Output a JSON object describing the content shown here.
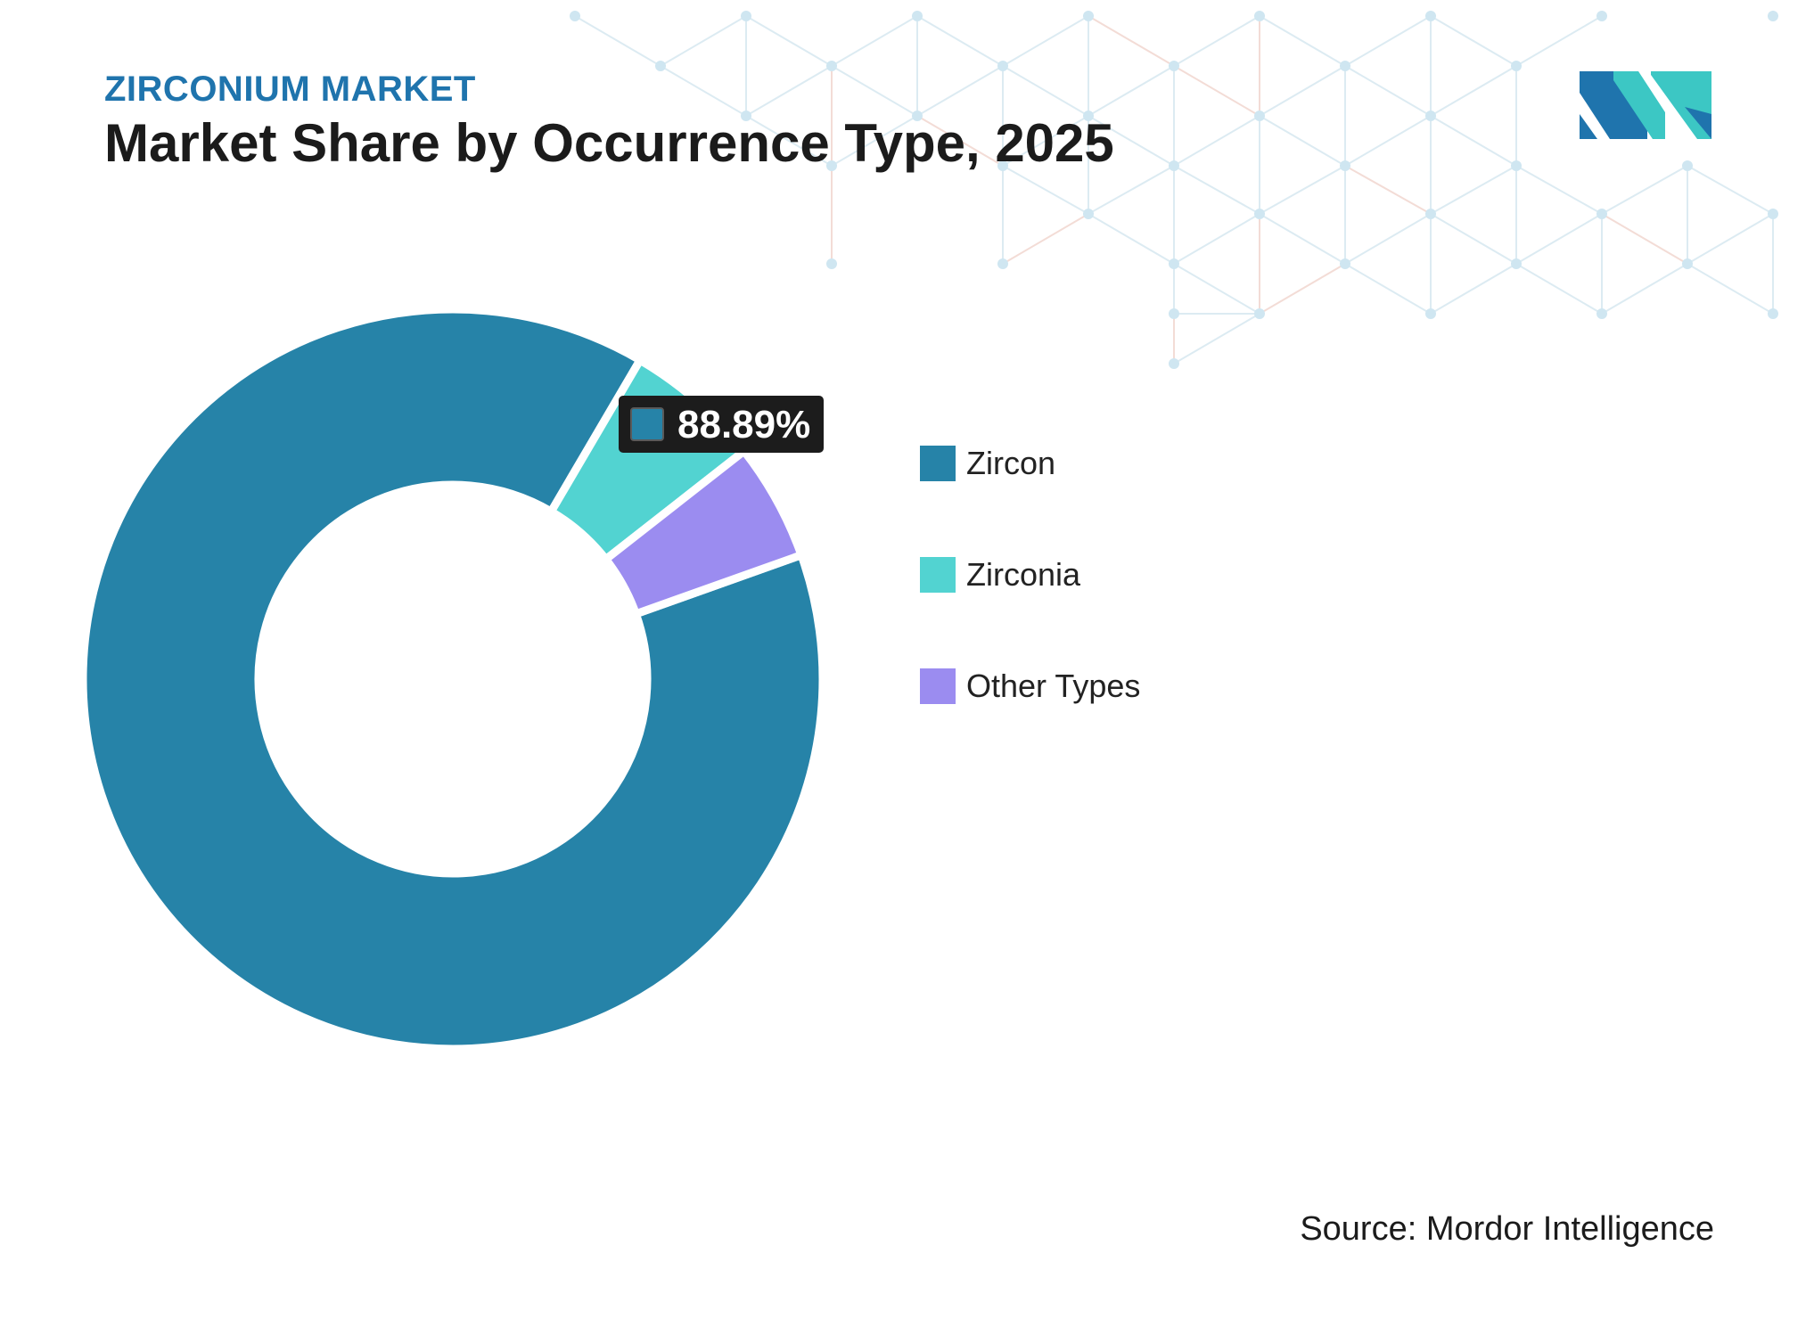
{
  "header": {
    "kicker": "ZIRCONIUM MARKET",
    "title": "Market Share by Occurrence Type, 2025"
  },
  "colors": {
    "zircon": "#2683a8",
    "zirconia": "#52d3d1",
    "other": "#9b8cf0",
    "tooltip_bg": "#1c1c1c",
    "logo_dark": "#1f74ad",
    "logo_light": "#3cc7c4"
  },
  "logo": {
    "icon": "mordor-intelligence-logo-icon"
  },
  "chart_data": {
    "type": "pie",
    "style": "donut",
    "slices": [
      {
        "name": "Zircon",
        "value": 88.89
      },
      {
        "name": "Zirconia",
        "value": 5.98
      },
      {
        "name": "Other Types",
        "value": 5.13
      }
    ],
    "data_label": {
      "text": "88.89%",
      "series": "Zircon"
    },
    "legend_position": "right",
    "title": ""
  },
  "legend": {
    "items": [
      {
        "label": "Zircon",
        "color": "#2683a8"
      },
      {
        "label": "Zirconia",
        "color": "#52d3d1"
      },
      {
        "label": "Other Types",
        "color": "#9b8cf0"
      }
    ]
  },
  "footer": {
    "source": "Source: Mordor Intelligence"
  }
}
